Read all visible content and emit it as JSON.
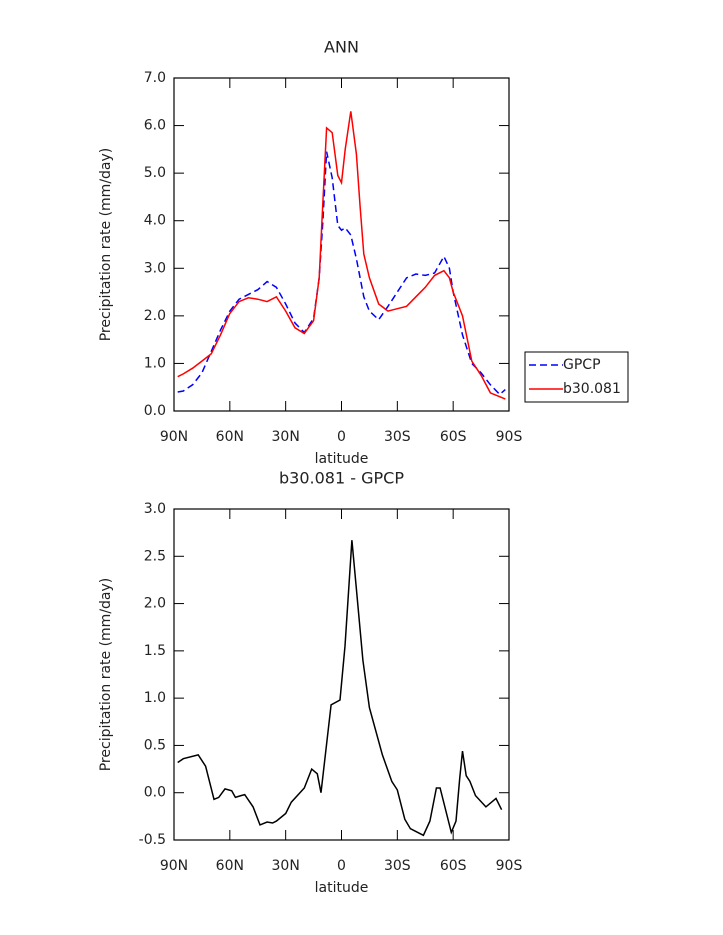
{
  "chart_data": [
    {
      "type": "line",
      "title": "ANN",
      "x_label": "latitude",
      "y_label": "Precipitation rate (mm/day)",
      "x": [
        88,
        85,
        80,
        75,
        70,
        65,
        60,
        55,
        50,
        45,
        40,
        35,
        30,
        25,
        20,
        15,
        12,
        10,
        8,
        5,
        2,
        0,
        -2,
        -5,
        -8,
        -10,
        -12,
        -15,
        -20,
        -25,
        -30,
        -35,
        -40,
        -45,
        -50,
        -55,
        -58,
        -60,
        -65,
        -70,
        -75,
        -80,
        -85,
        -88
      ],
      "series": [
        {
          "name": "GPCP",
          "color": "#0000ff",
          "style": "dashed",
          "values": [
            0.4,
            0.42,
            0.55,
            0.8,
            1.25,
            1.7,
            2.1,
            2.35,
            2.45,
            2.55,
            2.72,
            2.6,
            2.25,
            1.85,
            1.65,
            1.95,
            2.8,
            4.0,
            5.45,
            4.9,
            3.9,
            3.8,
            3.85,
            3.7,
            3.2,
            2.8,
            2.4,
            2.1,
            1.92,
            2.2,
            2.5,
            2.8,
            2.88,
            2.85,
            2.9,
            3.25,
            3.0,
            2.5,
            1.6,
            1.0,
            0.8,
            0.55,
            0.35,
            0.45
          ]
        },
        {
          "name": "b30.081",
          "color": "#ff0000",
          "style": "solid",
          "values": [
            0.72,
            0.78,
            0.9,
            1.05,
            1.2,
            1.6,
            2.05,
            2.3,
            2.38,
            2.35,
            2.3,
            2.4,
            2.1,
            1.75,
            1.63,
            1.9,
            2.8,
            4.4,
            5.95,
            5.85,
            4.95,
            4.8,
            5.5,
            6.3,
            5.4,
            4.3,
            3.3,
            2.8,
            2.25,
            2.1,
            2.15,
            2.2,
            2.4,
            2.6,
            2.85,
            2.95,
            2.8,
            2.5,
            2.0,
            1.05,
            0.75,
            0.38,
            0.3,
            0.25
          ]
        }
      ],
      "xlim": [
        90,
        -90
      ],
      "xticks": [
        {
          "value": 90,
          "label": "90N"
        },
        {
          "value": 60,
          "label": "60N"
        },
        {
          "value": 30,
          "label": "30N"
        },
        0,
        {
          "value": -30,
          "label": "30S"
        },
        {
          "value": -60,
          "label": "60S"
        },
        {
          "value": -90,
          "label": "90S"
        }
      ],
      "ylim": [
        0,
        7
      ],
      "yticks": [
        {
          "value": 0,
          "label": "0.0"
        },
        {
          "value": 1,
          "label": "1.0"
        },
        {
          "value": 2,
          "label": "2.0"
        },
        {
          "value": 3,
          "label": "3.0"
        },
        {
          "value": 4,
          "label": "4.0"
        },
        {
          "value": 5,
          "label": "5.0"
        },
        {
          "value": 6,
          "label": "6.0"
        },
        {
          "value": 7,
          "label": "7.0"
        }
      ],
      "legend": "right"
    },
    {
      "type": "line",
      "title": "b30.081 - GPCP",
      "x_label": "latitude",
      "y_label": "Precipitation rate (mm/day)",
      "x": [
        88,
        85,
        77,
        73,
        68.5,
        66,
        62.6,
        59,
        57,
        54,
        52,
        47.5,
        43.8,
        40,
        37,
        35,
        30,
        27,
        20,
        16,
        13,
        11,
        5.6,
        0.8,
        -1.9,
        -5.6,
        -7.8,
        -11.5,
        -15,
        -22,
        -27,
        -30,
        -34,
        -37,
        -42,
        -44,
        -47.5,
        -51,
        -53,
        -59,
        -61.5,
        -63.5,
        -65,
        -67,
        -69,
        -72,
        -77.6,
        -83,
        -86
      ],
      "series": [
        {
          "color": "#000000",
          "style": "solid",
          "values": [
            0.32,
            0.36,
            0.4,
            0.28,
            -0.07,
            -0.05,
            0.04,
            0.02,
            -0.05,
            -0.03,
            -0.02,
            -0.15,
            -0.34,
            -0.31,
            -0.32,
            -0.3,
            -0.22,
            -0.1,
            0.05,
            0.25,
            0.2,
            0.0,
            0.93,
            0.98,
            1.55,
            2.67,
            2.2,
            1.4,
            0.9,
            0.4,
            0.12,
            0.03,
            -0.28,
            -0.38,
            -0.43,
            -0.45,
            -0.3,
            0.05,
            0.05,
            -0.42,
            -0.3,
            0.15,
            0.44,
            0.18,
            0.12,
            -0.03,
            -0.15,
            -0.06,
            -0.18
          ]
        }
      ],
      "xlim": [
        90,
        -90
      ],
      "xticks": [
        {
          "value": 90,
          "label": "90N"
        },
        {
          "value": 60,
          "label": "60N"
        },
        {
          "value": 30,
          "label": "30N"
        },
        0,
        {
          "value": -30,
          "label": "30S"
        },
        {
          "value": -60,
          "label": "60S"
        },
        {
          "value": -90,
          "label": "90S"
        }
      ],
      "ylim": [
        -0.5,
        3
      ],
      "yticks": [
        -0.5,
        {
          "value": 0,
          "label": "0.0"
        },
        0.5,
        {
          "value": 1,
          "label": "1.0"
        },
        1.5,
        {
          "value": 2,
          "label": "2.0"
        },
        2.5,
        {
          "value": 3,
          "label": "3.0"
        }
      ]
    }
  ]
}
